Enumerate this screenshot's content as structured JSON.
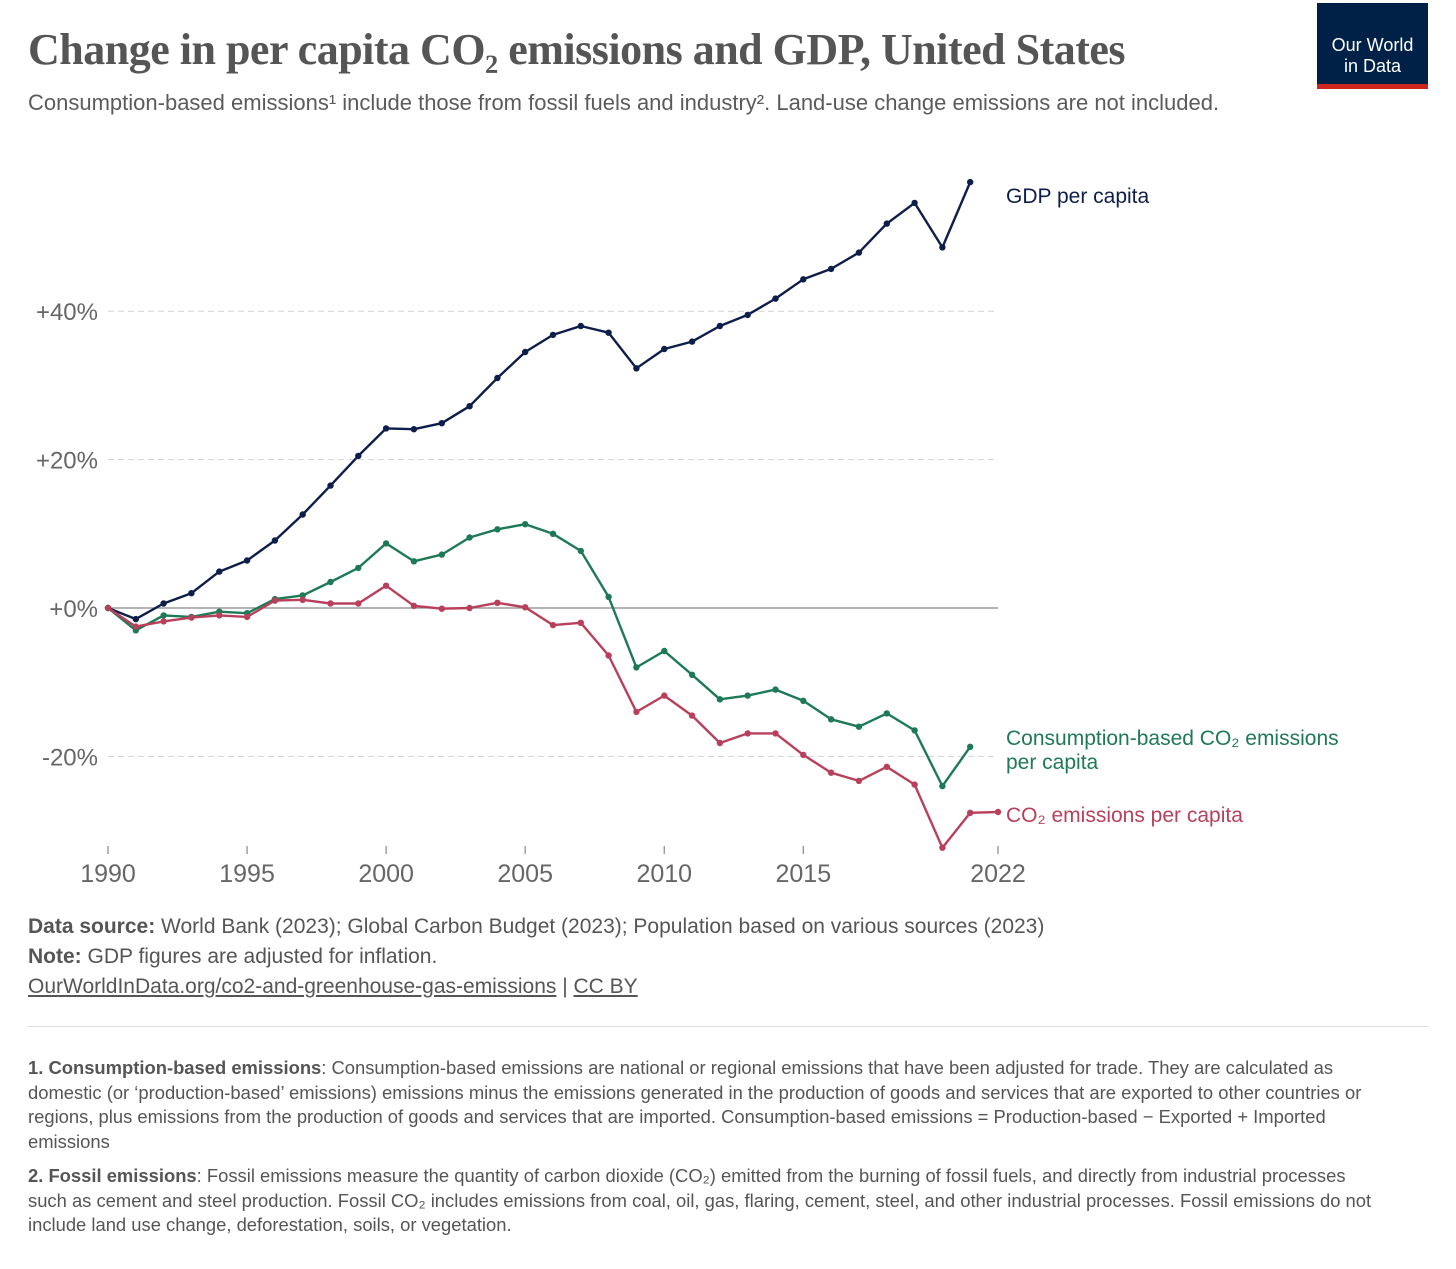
{
  "header": {
    "title": "Change in per capita CO₂ emissions and GDP, United States",
    "subtitle": "Consumption-based emissions¹ include those from fossil fuels and industry². Land-use change emissions are not included.",
    "logo_line1": "Our World",
    "logo_line2": "in Data"
  },
  "colors": {
    "gdp": "#0d1e4a",
    "consumption": "#1e7a56",
    "co2": "#b8405c",
    "grid": "#d4d4d4",
    "zero": "#888888",
    "logo_bg": "#002147",
    "logo_bar": "#ce261e"
  },
  "chart_data": {
    "type": "line",
    "title": "Change in per capita CO₂ emissions and GDP, United States",
    "x": [
      1990,
      1991,
      1992,
      1993,
      1994,
      1995,
      1996,
      1997,
      1998,
      1999,
      2000,
      2001,
      2002,
      2003,
      2004,
      2005,
      2006,
      2007,
      2008,
      2009,
      2010,
      2011,
      2012,
      2013,
      2014,
      2015,
      2016,
      2017,
      2018,
      2019,
      2020,
      2021,
      2022
    ],
    "xticks": [
      "1990",
      "1995",
      "2000",
      "2005",
      "2010",
      "2015",
      "2022"
    ],
    "xlim": [
      1990,
      2022
    ],
    "yticks": [
      {
        "value": 40,
        "label": "+40%"
      },
      {
        "value": 20,
        "label": "+20%"
      },
      {
        "value": 0,
        "label": "+0%"
      },
      {
        "value": -20,
        "label": "-20%"
      }
    ],
    "ylim": [
      -33,
      58
    ],
    "grid": "horizontal dashed",
    "series": [
      {
        "name": "GDP per capita",
        "key": "gdp",
        "values": [
          0,
          -1.5,
          0.6,
          2.0,
          4.9,
          6.4,
          9.1,
          12.6,
          16.5,
          20.5,
          24.2,
          24.1,
          24.9,
          27.2,
          31.0,
          34.5,
          36.8,
          38.0,
          37.1,
          32.3,
          34.9,
          35.9,
          38.0,
          39.5,
          41.7,
          44.3,
          45.7,
          47.9,
          51.8,
          54.6,
          48.6,
          57.4,
          null
        ]
      },
      {
        "name": "Consumption-based CO₂ emissions per capita",
        "key": "consumption",
        "values": [
          0,
          -3.0,
          -1.0,
          -1.2,
          -0.5,
          -0.7,
          1.2,
          1.7,
          3.5,
          5.4,
          8.7,
          6.3,
          7.2,
          9.5,
          10.6,
          11.3,
          10.0,
          7.7,
          1.5,
          -8.0,
          -5.8,
          -9.0,
          -12.3,
          -11.8,
          -11.0,
          -12.5,
          -15.0,
          -16.0,
          -14.2,
          -16.5,
          -24.0,
          -18.7,
          null
        ]
      },
      {
        "name": "CO₂ emissions per capita",
        "key": "co2",
        "values": [
          0,
          -2.5,
          -1.8,
          -1.3,
          -1.0,
          -1.2,
          1.0,
          1.1,
          0.6,
          0.6,
          3.0,
          0.3,
          -0.1,
          0.0,
          0.7,
          0.1,
          -2.3,
          -2.0,
          -6.4,
          -14.0,
          -11.8,
          -14.5,
          -18.2,
          -16.9,
          -16.9,
          -19.8,
          -22.2,
          -23.3,
          -21.4,
          -23.8,
          -32.3,
          -27.6,
          -27.5
        ]
      }
    ],
    "labels": {
      "gdp": [
        "GDP per capita"
      ],
      "consumption": [
        "Consumption-based CO₂ emissions",
        "per capita"
      ],
      "co2": [
        "CO₂ emissions per capita"
      ]
    }
  },
  "footer": {
    "source_label": "Data source:",
    "source_text": " World Bank (2023); Global Carbon Budget (2023); Population based on various sources (2023)",
    "note_label": "Note:",
    "note_text": " GDP figures are adjusted for inflation.",
    "link_text": "OurWorldInData.org/co2-and-greenhouse-gas-emissions",
    "separator": " | ",
    "license": "CC BY"
  },
  "notes": {
    "n1_label": "1. Consumption-based emissions",
    "n1_text": ": Consumption-based emissions are national or regional emissions that have been adjusted for trade. They are calculated as domestic (or ‘production-based’ emissions) emissions minus the emissions generated in the production of goods and services that are exported to other countries or regions, plus emissions from the production of goods and services that are imported. Consumption-based emissions = Production-based − Exported + Imported emissions",
    "n2_label": "2. Fossil emissions",
    "n2_text": ": Fossil emissions measure the quantity of carbon dioxide (CO₂) emitted from the burning of fossil fuels, and directly from industrial processes such as cement and steel production. Fossil CO₂ includes emissions from coal, oil, gas, flaring, cement, steel, and other industrial processes. Fossil emissions do not include land use change, deforestation, soils, or vegetation."
  }
}
